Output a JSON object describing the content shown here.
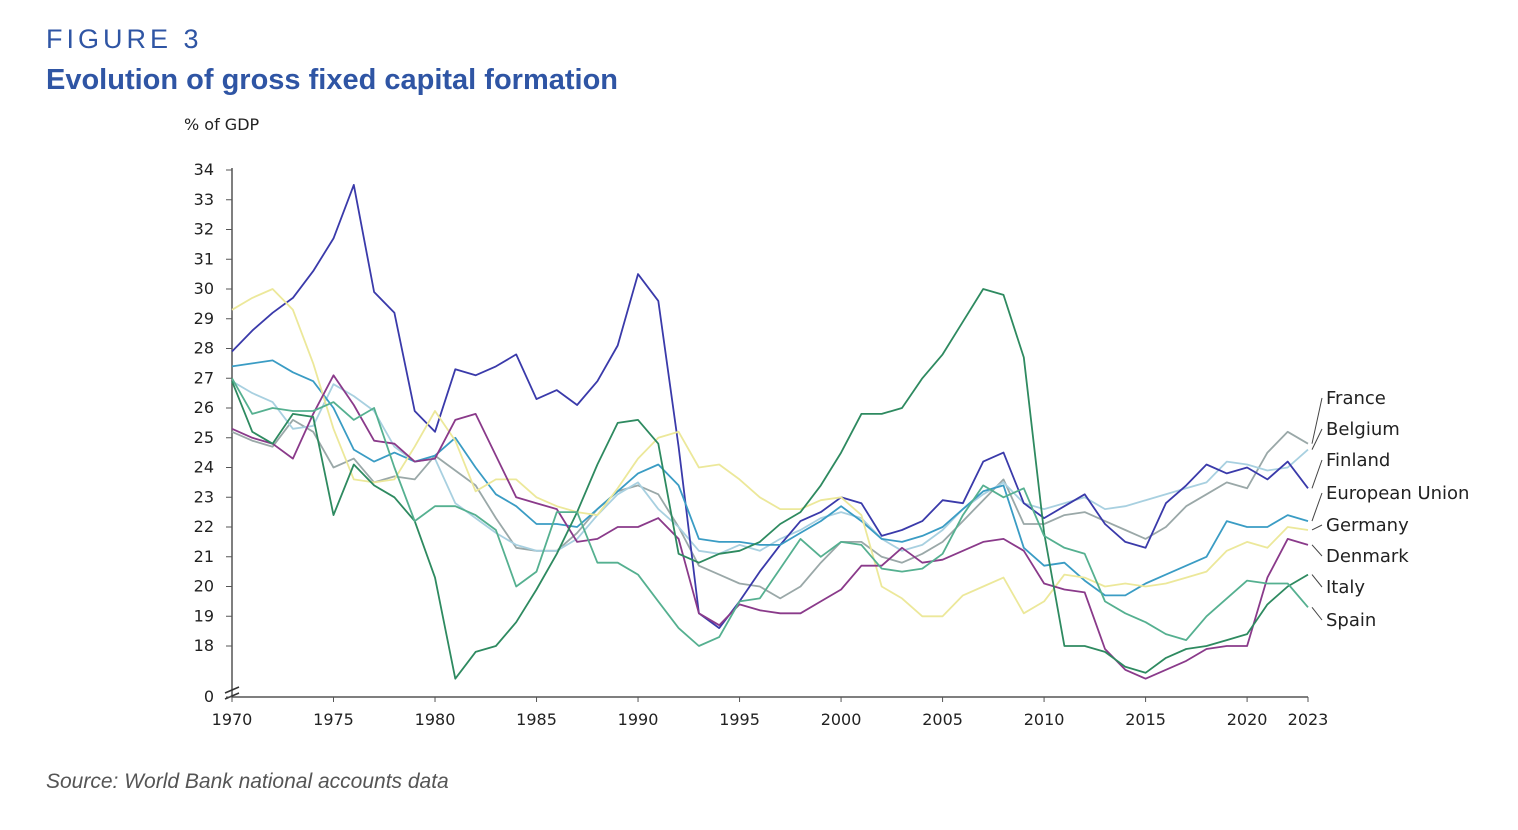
{
  "figure": {
    "label": "FIGURE 3",
    "title": "Evolution of gross fixed capital formation",
    "source": "Source: World Bank national accounts data"
  },
  "chart_data": {
    "type": "line",
    "title": "Evolution of gross fixed capital formation",
    "ylabel": "% of GDP",
    "xlabel": "",
    "y_axis_break": true,
    "y_ticks": [
      0,
      18,
      19,
      20,
      21,
      22,
      23,
      24,
      25,
      26,
      27,
      28,
      29,
      30,
      31,
      32,
      33,
      34
    ],
    "y_tick_labels": [
      "0",
      "18",
      "19",
      "20",
      "21",
      "22",
      "23",
      "24",
      "25",
      "26",
      "27",
      "28",
      "29",
      "30",
      "31",
      "32",
      "33",
      "34"
    ],
    "x_ticks": [
      1970,
      1975,
      1980,
      1985,
      1990,
      1995,
      2000,
      2005,
      2010,
      2015,
      2020,
      2023
    ],
    "x_tick_labels": [
      "1970",
      "1975",
      "1980",
      "1985",
      "1990",
      "1995",
      "2000",
      "2005",
      "2010",
      "2015",
      "2020",
      "2023"
    ],
    "xlim": [
      1970,
      2023
    ],
    "ylim_upper": [
      17.5,
      34
    ],
    "grid": false,
    "legend_placement": "right-end-labels",
    "x_start": 1970,
    "series": [
      {
        "name": "France",
        "color": "#9aa8a8",
        "values": [
          25.2,
          24.9,
          24.7,
          25.6,
          25.2,
          24.0,
          24.3,
          23.5,
          23.7,
          23.6,
          24.4,
          23.9,
          23.4,
          22.3,
          21.3,
          21.2,
          21.2,
          21.8,
          22.6,
          23.2,
          23.4,
          23.1,
          22.0,
          20.7,
          20.4,
          20.1,
          20.0,
          19.6,
          20.0,
          20.8,
          21.5,
          21.5,
          21.0,
          20.8,
          21.1,
          21.5,
          22.2,
          22.9,
          23.6,
          22.1,
          22.1,
          22.4,
          22.5,
          22.2,
          21.9,
          21.6,
          22.0,
          22.7,
          23.1,
          23.5,
          23.3,
          24.5,
          25.2,
          24.8
        ]
      },
      {
        "name": "Belgium",
        "color": "#a8d0e0",
        "values": [
          26.9,
          26.5,
          26.2,
          25.3,
          25.4,
          26.8,
          26.4,
          25.9,
          24.7,
          24.2,
          24.3,
          22.8,
          22.3,
          21.8,
          21.4,
          21.2,
          21.2,
          21.6,
          22.4,
          23.1,
          23.5,
          22.6,
          22.0,
          21.2,
          21.1,
          21.4,
          21.2,
          21.6,
          21.9,
          22.3,
          22.5,
          22.3,
          21.6,
          21.2,
          21.4,
          21.9,
          22.6,
          23.1,
          23.5,
          22.8,
          22.6,
          22.8,
          23.0,
          22.6,
          22.7,
          22.9,
          23.1,
          23.3,
          23.5,
          24.2,
          24.1,
          23.9,
          24.0,
          24.6
        ]
      },
      {
        "name": "Finland",
        "color": "#3a3aaa",
        "values": [
          27.9,
          28.6,
          29.2,
          29.7,
          30.6,
          31.7,
          33.5,
          29.9,
          29.2,
          25.9,
          25.2,
          27.3,
          27.1,
          27.4,
          27.8,
          26.3,
          26.6,
          26.1,
          26.9,
          28.1,
          30.5,
          29.6,
          24.7,
          19.1,
          18.6,
          19.5,
          20.5,
          21.4,
          22.2,
          22.5,
          23.0,
          22.8,
          21.7,
          21.9,
          22.2,
          22.9,
          22.8,
          24.2,
          24.5,
          22.8,
          22.3,
          22.7,
          23.1,
          22.1,
          21.5,
          21.3,
          22.8,
          23.4,
          24.1,
          23.8,
          24.0,
          23.6,
          24.2,
          23.3
        ]
      },
      {
        "name": "European Union",
        "color": "#3a9cc4",
        "values": [
          27.4,
          27.5,
          27.6,
          27.2,
          26.9,
          26.0,
          24.6,
          24.2,
          24.5,
          24.2,
          24.4,
          25.0,
          24.0,
          23.1,
          22.7,
          22.1,
          22.1,
          22.0,
          22.6,
          23.2,
          23.8,
          24.1,
          23.4,
          21.6,
          21.5,
          21.5,
          21.4,
          21.4,
          21.8,
          22.2,
          22.7,
          22.2,
          21.6,
          21.5,
          21.7,
          22.0,
          22.6,
          23.2,
          23.4,
          21.3,
          20.7,
          20.8,
          20.2,
          19.7,
          19.7,
          20.1,
          20.4,
          20.7,
          21.0,
          22.2,
          22.0,
          22.0,
          22.4,
          22.2
        ]
      },
      {
        "name": "Germany",
        "color": "#ece89a",
        "values": [
          29.3,
          29.7,
          30.0,
          29.3,
          27.5,
          25.3,
          23.6,
          23.5,
          23.6,
          24.7,
          25.9,
          24.9,
          23.2,
          23.6,
          23.6,
          23.0,
          22.7,
          22.5,
          22.4,
          23.3,
          24.3,
          25.0,
          25.2,
          24.0,
          24.1,
          23.6,
          23.0,
          22.6,
          22.6,
          22.9,
          23.0,
          22.4,
          20.0,
          19.6,
          19.0,
          19.0,
          19.7,
          20.0,
          20.3,
          19.1,
          19.5,
          20.4,
          20.3,
          20.0,
          20.1,
          20.0,
          20.1,
          20.3,
          20.5,
          21.2,
          21.5,
          21.3,
          22.0,
          21.9
        ]
      },
      {
        "name": "Denmark",
        "color": "#8a3a8a",
        "values": [
          25.3,
          25.0,
          24.8,
          24.3,
          25.8,
          27.1,
          26.1,
          24.9,
          24.8,
          24.2,
          24.3,
          25.6,
          25.8,
          24.4,
          23.0,
          22.8,
          22.6,
          21.5,
          21.6,
          22.0,
          22.0,
          22.3,
          21.6,
          19.1,
          18.7,
          19.4,
          19.2,
          19.1,
          19.1,
          19.5,
          19.9,
          20.7,
          20.7,
          21.3,
          20.8,
          20.9,
          21.2,
          21.5,
          21.6,
          21.2,
          20.1,
          19.9,
          19.8,
          17.9,
          17.2,
          16.9,
          17.2,
          17.5,
          17.9,
          18.0,
          18.0,
          20.3,
          21.6,
          21.4
        ]
      },
      {
        "name": "Italy",
        "color": "#2e8a60",
        "values": [
          26.9,
          25.2,
          24.8,
          25.8,
          25.7,
          22.4,
          24.1,
          23.4,
          23.0,
          22.2,
          20.3,
          16.9,
          17.8,
          18.0,
          18.8,
          19.9,
          21.1,
          22.5,
          24.1,
          25.5,
          25.6,
          24.8,
          21.1,
          20.8,
          21.1,
          21.2,
          21.5,
          22.1,
          22.5,
          23.4,
          24.5,
          25.8,
          25.8,
          26.0,
          27.0,
          27.8,
          28.9,
          30.0,
          29.8,
          27.7,
          21.8,
          18.0,
          18.0,
          17.8,
          17.3,
          17.1,
          17.6,
          17.9,
          18.0,
          18.2,
          18.4,
          19.4,
          20.0,
          20.4
        ]
      },
      {
        "name": "Spain",
        "color": "#55b090",
        "values": [
          27.0,
          25.8,
          26.0,
          25.9,
          25.9,
          26.2,
          25.6,
          26.0,
          24.0,
          22.2,
          22.7,
          22.7,
          22.4,
          21.9,
          20.0,
          20.5,
          22.5,
          22.5,
          20.8,
          20.8,
          20.4,
          19.5,
          18.6,
          18.0,
          18.3,
          19.5,
          19.6,
          20.6,
          21.6,
          21.0,
          21.5,
          21.4,
          20.6,
          20.5,
          20.6,
          21.1,
          22.4,
          23.4,
          23.0,
          23.3,
          21.7,
          21.3,
          21.1,
          19.5,
          19.1,
          18.8,
          18.4,
          18.2,
          19.0,
          19.6,
          20.2,
          20.1,
          20.1,
          19.3
        ]
      }
    ]
  }
}
